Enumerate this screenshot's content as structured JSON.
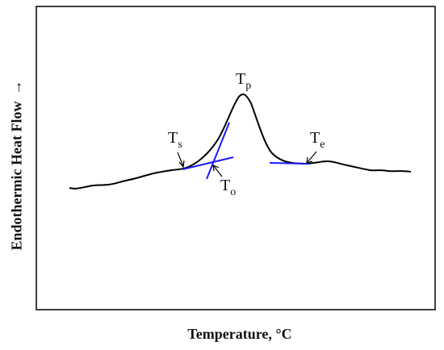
{
  "diagram": {
    "xlabel": "Temperature, °C",
    "ylabel": "Endothermic Heat Flow",
    "ylabel_arrow": "→",
    "points": {
      "Ts": {
        "main": "T",
        "sub": "s"
      },
      "To": {
        "main": "T",
        "sub": "o"
      },
      "Tp": {
        "main": "T",
        "sub": "p"
      },
      "Te": {
        "main": "T",
        "sub": "e"
      }
    }
  },
  "colors": {
    "curve": "#000000",
    "tangent": "#1a1aff",
    "frame": "#000000"
  }
}
